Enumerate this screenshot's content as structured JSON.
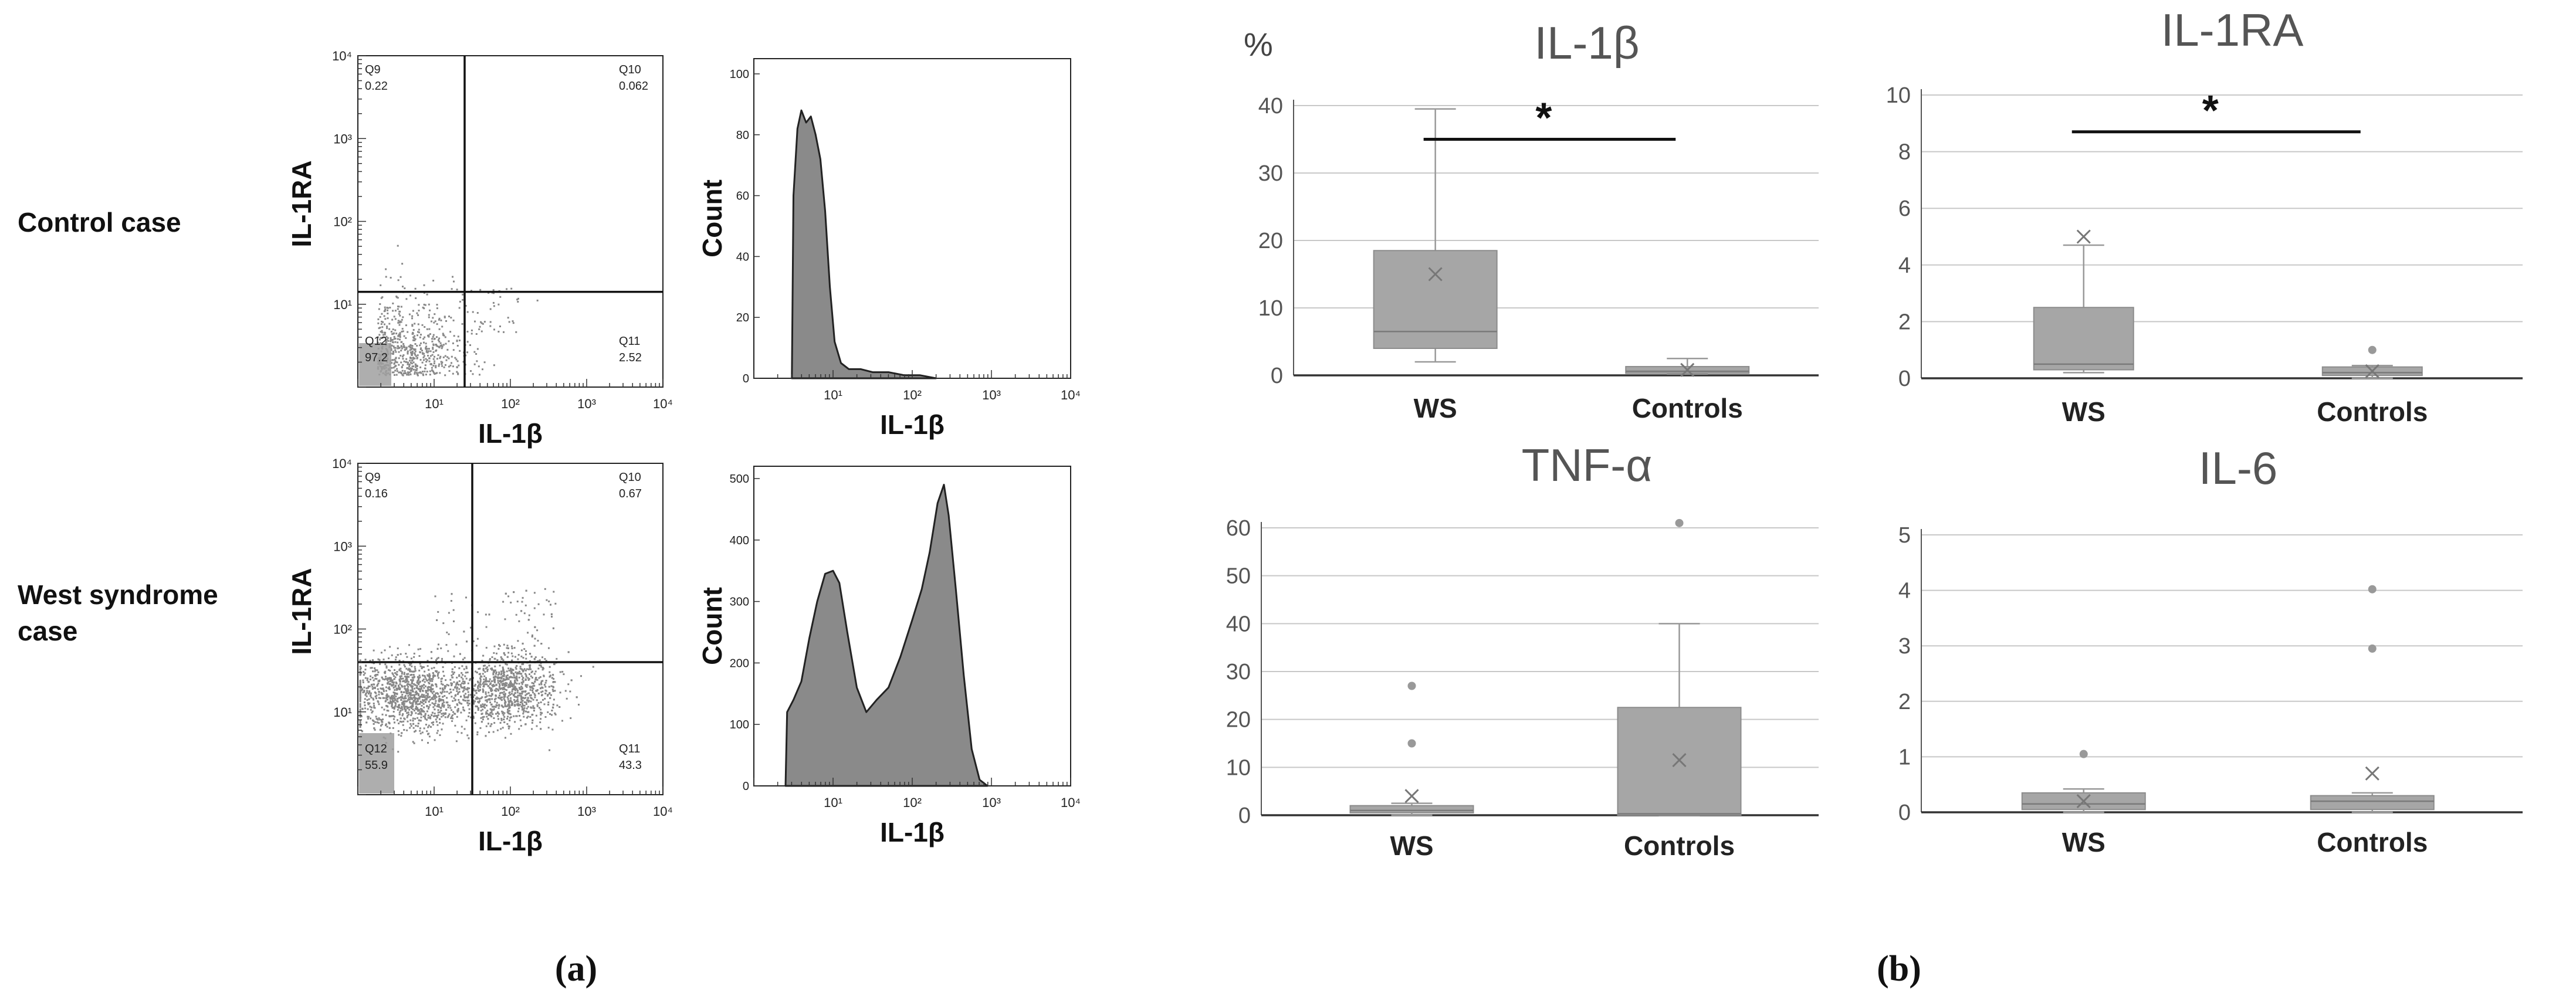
{
  "panel_a": {
    "label": "(a)",
    "rows": [
      {
        "case_label": [
          "Control case"
        ],
        "scatter": {
          "xlabel": "IL-1β",
          "ylabel": "IL-1RA",
          "gate_x_exp": 1.4,
          "gate_y_exp": 1.15,
          "quadrants": [
            {
              "name": "Q9",
              "value": "0.22"
            },
            {
              "name": "Q10",
              "value": "0.062"
            },
            {
              "name": "Q11",
              "value": "2.52"
            },
            {
              "name": "Q12",
              "value": "97.2"
            }
          ],
          "cluster": "control"
        },
        "histogram": {
          "xlabel": "IL-1β",
          "ylabel": "Count",
          "y_ticks": [
            "0",
            "20",
            "40",
            "60",
            "80",
            "100"
          ],
          "ymax": 105,
          "curve": [
            [
              0.48,
              0
            ],
            [
              0.5,
              60
            ],
            [
              0.55,
              82
            ],
            [
              0.6,
              88
            ],
            [
              0.66,
              84
            ],
            [
              0.72,
              86
            ],
            [
              0.78,
              80
            ],
            [
              0.84,
              72
            ],
            [
              0.9,
              55
            ],
            [
              0.96,
              30
            ],
            [
              1.02,
              12
            ],
            [
              1.1,
              5
            ],
            [
              1.2,
              3
            ],
            [
              1.35,
              3
            ],
            [
              1.5,
              2
            ],
            [
              1.7,
              2
            ],
            [
              1.9,
              1
            ],
            [
              2.1,
              1
            ],
            [
              2.3,
              0
            ]
          ]
        }
      },
      {
        "case_label": [
          "West syndrome",
          "case"
        ],
        "scatter": {
          "xlabel": "IL-1β",
          "ylabel": "IL-1RA",
          "gate_x_exp": 1.5,
          "gate_y_exp": 1.6,
          "quadrants": [
            {
              "name": "Q9",
              "value": "0.16"
            },
            {
              "name": "Q10",
              "value": "0.67"
            },
            {
              "name": "Q11",
              "value": "43.3"
            },
            {
              "name": "Q12",
              "value": "55.9"
            }
          ],
          "cluster": "ws"
        },
        "histogram": {
          "xlabel": "IL-1β",
          "ylabel": "Count",
          "y_ticks": [
            "0",
            "100",
            "200",
            "300",
            "400",
            "500"
          ],
          "ymax": 520,
          "curve": [
            [
              0.4,
              0
            ],
            [
              0.42,
              120
            ],
            [
              0.5,
              140
            ],
            [
              0.6,
              170
            ],
            [
              0.7,
              240
            ],
            [
              0.8,
              300
            ],
            [
              0.9,
              345
            ],
            [
              1.0,
              350
            ],
            [
              1.08,
              330
            ],
            [
              1.18,
              250
            ],
            [
              1.3,
              160
            ],
            [
              1.42,
              120
            ],
            [
              1.55,
              140
            ],
            [
              1.7,
              160
            ],
            [
              1.85,
              210
            ],
            [
              2.0,
              270
            ],
            [
              2.12,
              320
            ],
            [
              2.22,
              380
            ],
            [
              2.32,
              460
            ],
            [
              2.4,
              490
            ],
            [
              2.46,
              440
            ],
            [
              2.55,
              320
            ],
            [
              2.65,
              180
            ],
            [
              2.75,
              60
            ],
            [
              2.85,
              10
            ],
            [
              2.95,
              0
            ]
          ]
        }
      }
    ]
  },
  "panel_b": {
    "label": "(b)",
    "unit": "%",
    "categories": [
      "WS",
      "Controls"
    ]
  },
  "chart_data": [
    {
      "type": "box",
      "title": "IL-1β",
      "ylabel": "%",
      "ylim": [
        0,
        40
      ],
      "yticks": [
        0,
        10,
        20,
        30,
        40
      ],
      "categories": [
        "WS",
        "Controls"
      ],
      "boxes": [
        {
          "name": "WS",
          "min": 2,
          "q1": 4,
          "median": 6.5,
          "q3": 18.5,
          "max": 39.5,
          "mean": 15,
          "outliers": []
        },
        {
          "name": "Controls",
          "min": 0.2,
          "q1": 0.3,
          "median": 0.6,
          "q3": 1.3,
          "max": 2.5,
          "mean": 0.8,
          "outliers": []
        }
      ],
      "significance": {
        "symbol": "*",
        "y": 35
      }
    },
    {
      "type": "box",
      "title": "IL-1RA",
      "ylim": [
        0,
        10
      ],
      "yticks": [
        0,
        2,
        4,
        6,
        8,
        10
      ],
      "categories": [
        "WS",
        "Controls"
      ],
      "boxes": [
        {
          "name": "WS",
          "min": 0.2,
          "q1": 0.3,
          "median": 0.5,
          "q3": 2.5,
          "max": 4.7,
          "mean": 5,
          "outliers": []
        },
        {
          "name": "Controls",
          "min": 0,
          "q1": 0.1,
          "median": 0.2,
          "q3": 0.4,
          "max": 0.45,
          "mean": 0.25,
          "outliers": [
            1
          ]
        }
      ],
      "significance": {
        "symbol": "*",
        "y": 8.7
      }
    },
    {
      "type": "box",
      "title": "TNF-α",
      "ylim": [
        0,
        60
      ],
      "yticks": [
        0,
        10,
        20,
        30,
        40,
        50,
        60
      ],
      "categories": [
        "WS",
        "Controls"
      ],
      "boxes": [
        {
          "name": "WS",
          "min": 0,
          "q1": 0.5,
          "median": 1,
          "q3": 2,
          "max": 2.5,
          "mean": 4,
          "outliers": [
            15,
            27
          ]
        },
        {
          "name": "Controls",
          "min": 0,
          "q1": 0,
          "median": 0.3,
          "q3": 22.5,
          "max": 40,
          "mean": 11.5,
          "outliers": [
            61
          ]
        }
      ]
    },
    {
      "type": "box",
      "title": "IL-6",
      "ylim": [
        0,
        5
      ],
      "yticks": [
        0,
        1,
        2,
        3,
        4,
        5
      ],
      "categories": [
        "WS",
        "Controls"
      ],
      "boxes": [
        {
          "name": "WS",
          "min": 0,
          "q1": 0.05,
          "median": 0.15,
          "q3": 0.35,
          "max": 0.42,
          "mean": 0.2,
          "outliers": [
            1.05
          ]
        },
        {
          "name": "Controls",
          "min": 0,
          "q1": 0.05,
          "median": 0.2,
          "q3": 0.3,
          "max": 0.35,
          "mean": 0.7,
          "outliers": [
            2.95,
            4.02
          ]
        }
      ]
    }
  ]
}
